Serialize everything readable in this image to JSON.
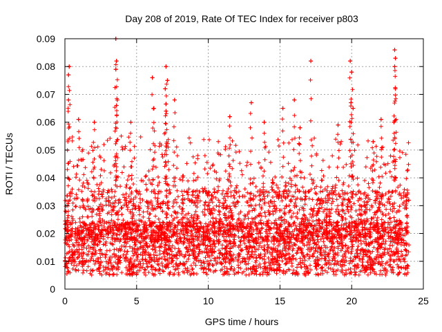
{
  "chart_data": {
    "type": "scatter",
    "title": "Day 208 of 2019, Rate Of TEC Index for receiver p803",
    "xlabel": "GPS time / hours",
    "ylabel": "ROTI / TECUs",
    "xlim": [
      0,
      25
    ],
    "ylim": [
      0,
      0.09
    ],
    "xticks": [
      0,
      5,
      10,
      15,
      20,
      25
    ],
    "yticks": [
      0,
      0.01,
      0.02,
      0.03,
      0.04,
      0.05,
      0.06,
      0.07,
      0.08,
      0.09
    ],
    "grid": true,
    "legend": "none",
    "marker": "plus",
    "color": "#ff0000",
    "series": [
      {
        "x_range": [
          0,
          24
        ],
        "baseline_median": 0.017,
        "baseline_spread": [
          0.005,
          0.035
        ],
        "peaks": [
          {
            "x": 0.3,
            "y": 0.08
          },
          {
            "x": 0.25,
            "y": 0.077
          },
          {
            "x": 0.25,
            "y": 0.068
          },
          {
            "x": 0.95,
            "y": 0.061
          },
          {
            "x": 2.05,
            "y": 0.06
          },
          {
            "x": 3.55,
            "y": 0.09
          },
          {
            "x": 3.6,
            "y": 0.082
          },
          {
            "x": 3.55,
            "y": 0.079
          },
          {
            "x": 3.65,
            "y": 0.068
          },
          {
            "x": 3.6,
            "y": 0.066
          },
          {
            "x": 4.6,
            "y": 0.06
          },
          {
            "x": 6.1,
            "y": 0.076
          },
          {
            "x": 6.2,
            "y": 0.065
          },
          {
            "x": 7.05,
            "y": 0.08
          },
          {
            "x": 7.15,
            "y": 0.075
          },
          {
            "x": 7.0,
            "y": 0.072
          },
          {
            "x": 7.05,
            "y": 0.064
          },
          {
            "x": 7.65,
            "y": 0.068
          },
          {
            "x": 11.5,
            "y": 0.062
          },
          {
            "x": 13.0,
            "y": 0.067
          },
          {
            "x": 13.9,
            "y": 0.06
          },
          {
            "x": 15.2,
            "y": 0.065
          },
          {
            "x": 16.0,
            "y": 0.068
          },
          {
            "x": 17.15,
            "y": 0.082
          },
          {
            "x": 16.4,
            "y": 0.058
          },
          {
            "x": 19.05,
            "y": 0.059
          },
          {
            "x": 19.9,
            "y": 0.082
          },
          {
            "x": 20.0,
            "y": 0.078
          },
          {
            "x": 19.95,
            "y": 0.067
          },
          {
            "x": 20.1,
            "y": 0.065
          },
          {
            "x": 21.5,
            "y": 0.053
          },
          {
            "x": 22.05,
            "y": 0.061
          },
          {
            "x": 23.0,
            "y": 0.086
          },
          {
            "x": 23.05,
            "y": 0.083
          },
          {
            "x": 23.0,
            "y": 0.08
          },
          {
            "x": 23.05,
            "y": 0.072
          },
          {
            "x": 22.95,
            "y": 0.06
          }
        ]
      }
    ]
  }
}
